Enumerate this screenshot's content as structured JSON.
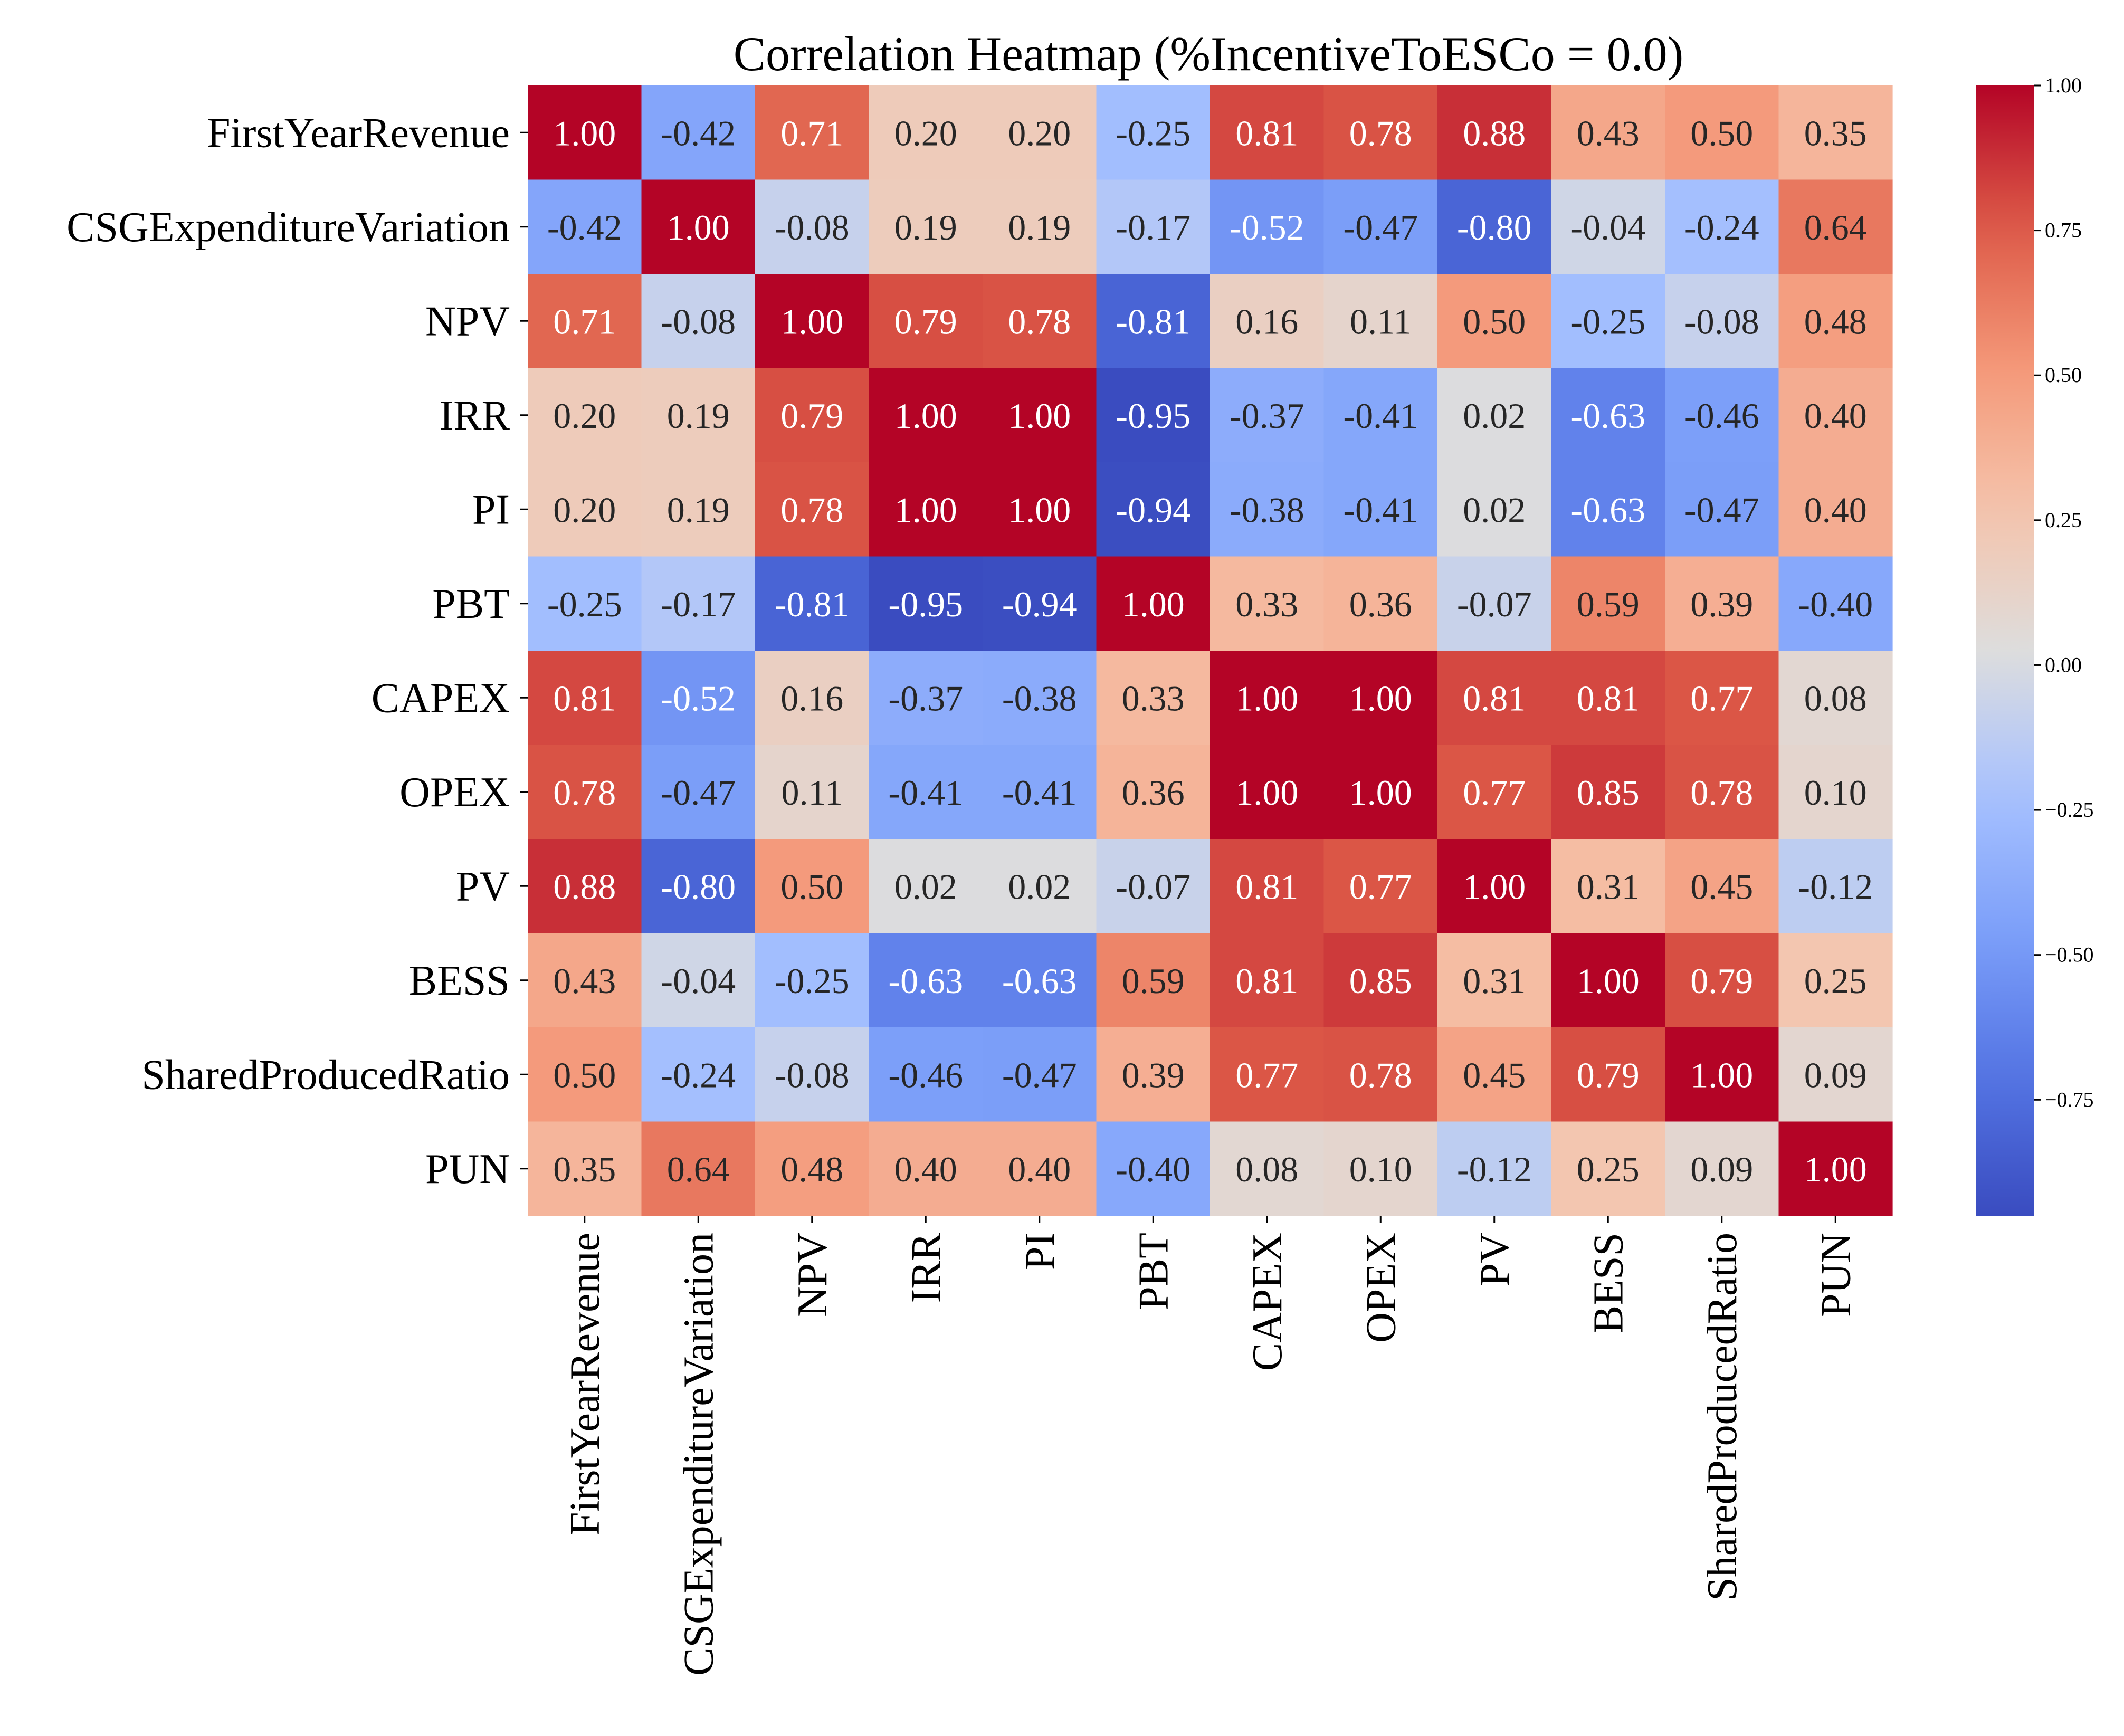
{
  "chart_data": {
    "type": "heatmap",
    "title": "Correlation Heatmap (%IncentiveToESCo = 0.0)",
    "xlabel": "",
    "ylabel": "",
    "labels": [
      "FirstYearRevenue",
      "CSGExpenditureVariation",
      "NPV",
      "IRR",
      "PI",
      "PBT",
      "CAPEX",
      "OPEX",
      "PV",
      "BESS",
      "SharedProducedRatio",
      "PUN"
    ],
    "values": [
      [
        1.0,
        -0.42,
        0.71,
        0.2,
        0.2,
        -0.25,
        0.81,
        0.78,
        0.88,
        0.43,
        0.5,
        0.35
      ],
      [
        -0.42,
        1.0,
        -0.08,
        0.19,
        0.19,
        -0.17,
        -0.52,
        -0.47,
        -0.8,
        -0.04,
        -0.24,
        0.64
      ],
      [
        0.71,
        -0.08,
        1.0,
        0.79,
        0.78,
        -0.81,
        0.16,
        0.11,
        0.5,
        -0.25,
        -0.08,
        0.48
      ],
      [
        0.2,
        0.19,
        0.79,
        1.0,
        1.0,
        -0.95,
        -0.37,
        -0.41,
        0.02,
        -0.63,
        -0.46,
        0.4
      ],
      [
        0.2,
        0.19,
        0.78,
        1.0,
        1.0,
        -0.94,
        -0.38,
        -0.41,
        0.02,
        -0.63,
        -0.47,
        0.4
      ],
      [
        -0.25,
        -0.17,
        -0.81,
        -0.95,
        -0.94,
        1.0,
        0.33,
        0.36,
        -0.07,
        0.59,
        0.39,
        -0.4
      ],
      [
        0.81,
        -0.52,
        0.16,
        -0.37,
        -0.38,
        0.33,
        1.0,
        1.0,
        0.81,
        0.81,
        0.77,
        0.08
      ],
      [
        0.78,
        -0.47,
        0.11,
        -0.41,
        -0.41,
        0.36,
        1.0,
        1.0,
        0.77,
        0.85,
        0.78,
        0.1
      ],
      [
        0.88,
        -0.8,
        0.5,
        0.02,
        0.02,
        -0.07,
        0.81,
        0.77,
        1.0,
        0.31,
        0.45,
        -0.12
      ],
      [
        0.43,
        -0.04,
        -0.25,
        -0.63,
        -0.63,
        0.59,
        0.81,
        0.85,
        0.31,
        1.0,
        0.79,
        0.25
      ],
      [
        0.5,
        -0.24,
        -0.08,
        -0.46,
        -0.47,
        0.39,
        0.77,
        0.78,
        0.45,
        0.79,
        1.0,
        0.09
      ],
      [
        0.35,
        0.64,
        0.48,
        0.4,
        0.4,
        -0.4,
        0.08,
        0.1,
        -0.12,
        0.25,
        0.09,
        1.0
      ]
    ],
    "value_format": "0.00",
    "vmin": -0.95,
    "vmax": 1.0,
    "colormap": "coolwarm",
    "colorbar": {
      "ticks": [
        1.0,
        0.75,
        0.5,
        0.25,
        0.0,
        -0.25,
        -0.5,
        -0.75
      ],
      "tick_labels": [
        "1.00",
        "0.75",
        "0.50",
        "0.25",
        "0.00",
        "−0.25",
        "−0.50",
        "−0.75"
      ]
    },
    "grid": false
  }
}
